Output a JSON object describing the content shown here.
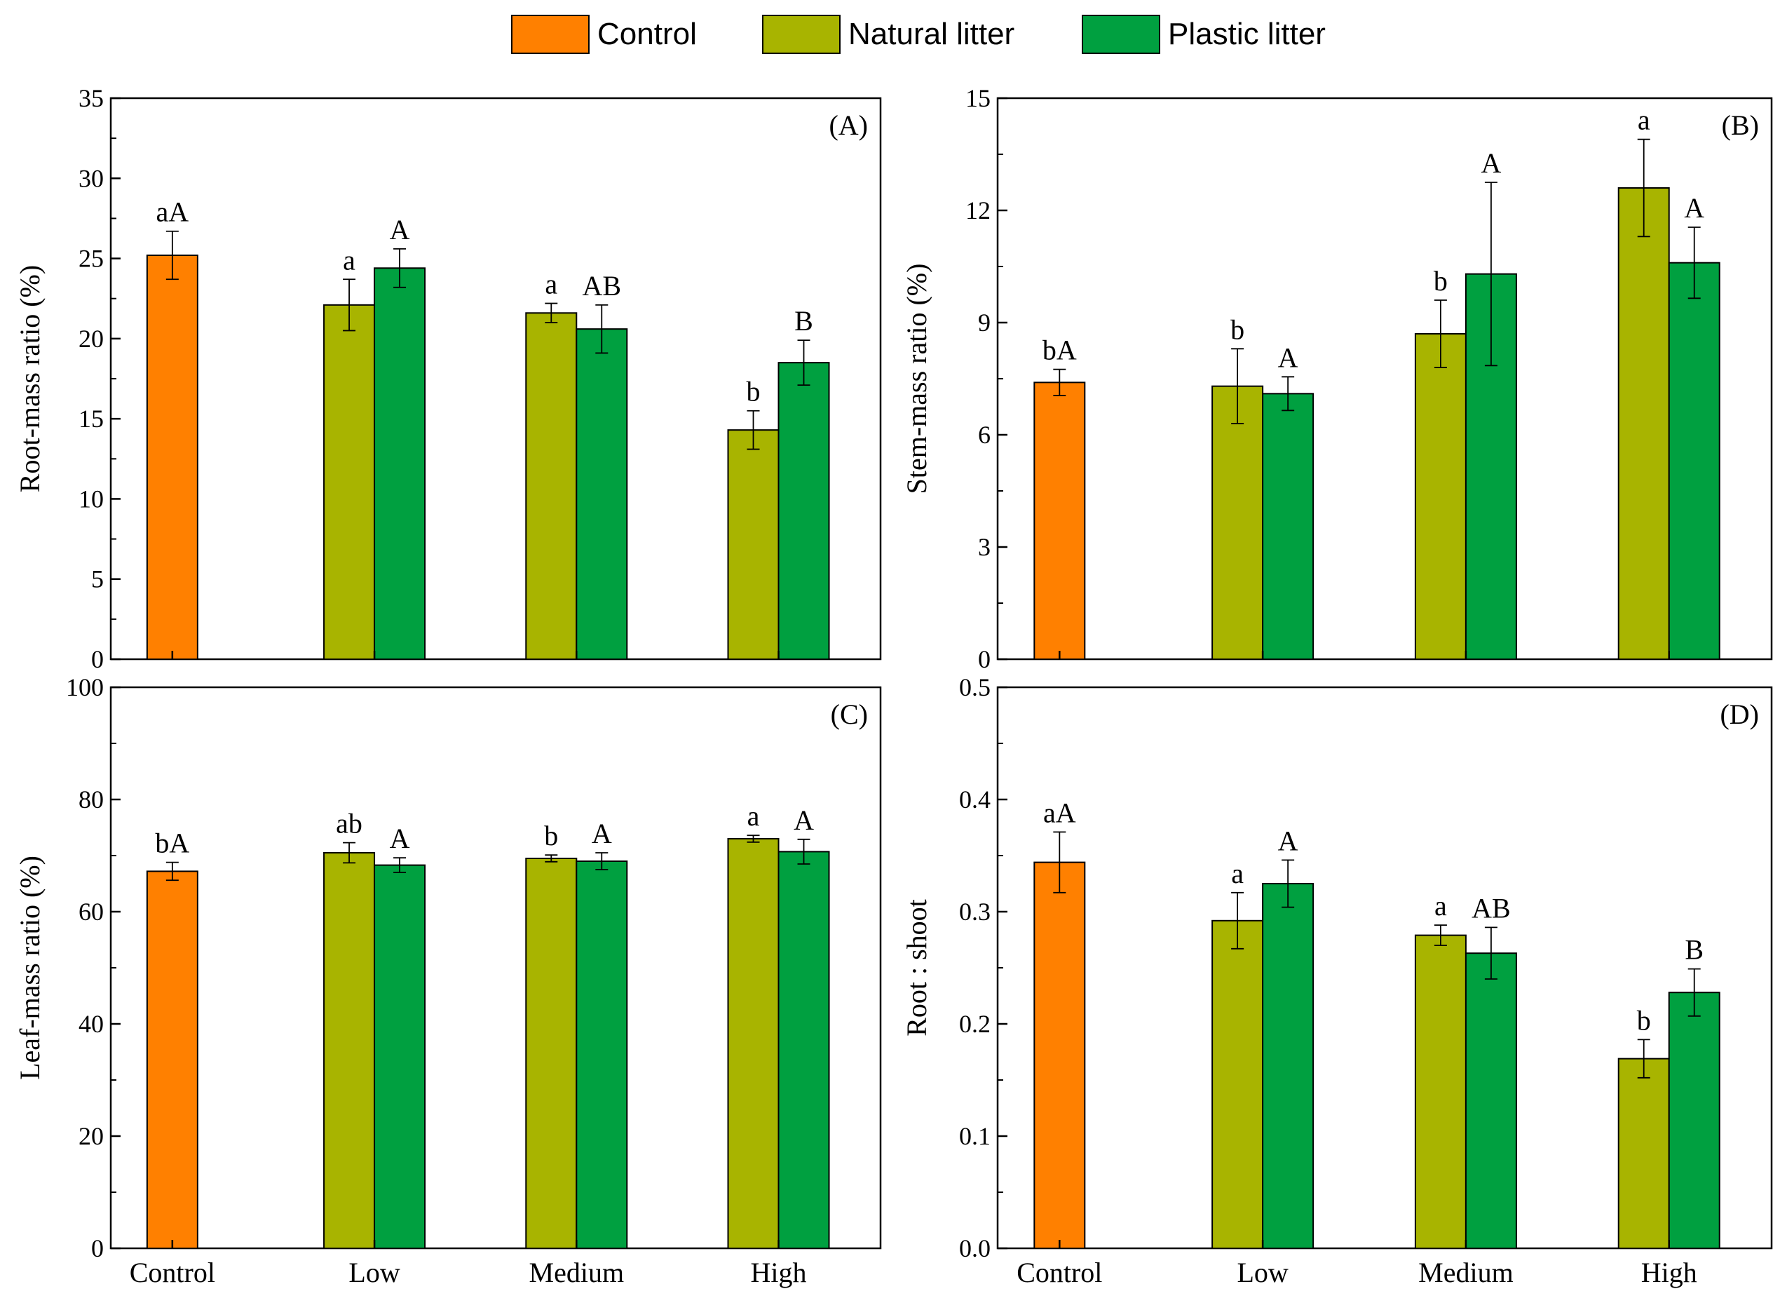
{
  "legend": [
    {
      "name": "Control",
      "color": "#FF8000"
    },
    {
      "name": "Natural litter",
      "color": "#A8B400"
    },
    {
      "name": "Plastic litter",
      "color": "#00A040"
    }
  ],
  "chart_data": [
    {
      "panel": "(A)",
      "type": "bar",
      "ylabel": "Root-mass ratio (%)",
      "ylim": [
        0,
        35
      ],
      "yticks": [
        "0",
        "5",
        "10",
        "15",
        "20",
        "25",
        "30",
        "35"
      ],
      "categories": [
        "Control",
        "Low",
        "Medium",
        "High"
      ],
      "show_categories": false,
      "series": [
        {
          "name": "Control",
          "values": [
            25.2,
            null,
            null,
            null
          ],
          "errors": [
            1.5,
            null,
            null,
            null
          ],
          "labels": [
            "aA",
            null,
            null,
            null
          ]
        },
        {
          "name": "Natural litter",
          "values": [
            null,
            22.1,
            21.6,
            14.3
          ],
          "errors": [
            null,
            1.6,
            0.6,
            1.2
          ],
          "labels": [
            null,
            "a",
            "a",
            "b"
          ]
        },
        {
          "name": "Plastic litter",
          "values": [
            null,
            24.4,
            20.6,
            18.5
          ],
          "errors": [
            null,
            1.2,
            1.5,
            1.4
          ],
          "labels": [
            null,
            "A",
            "AB",
            "B"
          ]
        }
      ]
    },
    {
      "panel": "(B)",
      "type": "bar",
      "ylabel": "Stem-mass ratio (%)",
      "ylim": [
        0,
        15
      ],
      "yticks": [
        "0",
        "3",
        "6",
        "9",
        "12",
        "15"
      ],
      "categories": [
        "Control",
        "Low",
        "Medium",
        "High"
      ],
      "show_categories": false,
      "series": [
        {
          "name": "Control",
          "values": [
            7.4,
            null,
            null,
            null
          ],
          "errors": [
            0.35,
            null,
            null,
            null
          ],
          "labels": [
            "bA",
            null,
            null,
            null
          ]
        },
        {
          "name": "Natural litter",
          "values": [
            null,
            7.3,
            8.7,
            12.6
          ],
          "errors": [
            null,
            1.0,
            0.9,
            1.3
          ],
          "labels": [
            null,
            "b",
            "b",
            "a"
          ]
        },
        {
          "name": "Plastic litter",
          "values": [
            null,
            7.1,
            10.3,
            10.6
          ],
          "errors": [
            null,
            0.45,
            2.45,
            0.95
          ],
          "labels": [
            null,
            "A",
            "A",
            "A"
          ]
        }
      ]
    },
    {
      "panel": "(C)",
      "type": "bar",
      "ylabel": "Leaf-mass ratio (%)",
      "ylim": [
        0,
        100
      ],
      "yticks": [
        "0",
        "20",
        "40",
        "60",
        "80",
        "100"
      ],
      "categories": [
        "Control",
        "Low",
        "Medium",
        "High"
      ],
      "show_categories": true,
      "series": [
        {
          "name": "Control",
          "values": [
            67.2,
            null,
            null,
            null
          ],
          "errors": [
            1.6,
            null,
            null,
            null
          ],
          "labels": [
            "bA",
            null,
            null,
            null
          ]
        },
        {
          "name": "Natural litter",
          "values": [
            null,
            70.5,
            69.5,
            73.0
          ],
          "errors": [
            null,
            1.8,
            0.6,
            0.6
          ],
          "labels": [
            null,
            "ab",
            "b",
            "a"
          ]
        },
        {
          "name": "Plastic litter",
          "values": [
            null,
            68.3,
            69.0,
            70.7
          ],
          "errors": [
            null,
            1.3,
            1.5,
            2.2
          ],
          "labels": [
            null,
            "A",
            "A",
            "A"
          ]
        }
      ]
    },
    {
      "panel": "(D)",
      "type": "bar",
      "ylabel": "Root : shoot",
      "ylim": [
        0,
        0.5
      ],
      "yticks": [
        "0.0",
        "0.1",
        "0.2",
        "0.3",
        "0.4",
        "0.5"
      ],
      "categories": [
        "Control",
        "Low",
        "Medium",
        "High"
      ],
      "show_categories": true,
      "series": [
        {
          "name": "Control",
          "values": [
            0.344,
            null,
            null,
            null
          ],
          "errors": [
            0.027,
            null,
            null,
            null
          ],
          "labels": [
            "aA",
            null,
            null,
            null
          ]
        },
        {
          "name": "Natural litter",
          "values": [
            null,
            0.292,
            0.279,
            0.169
          ],
          "errors": [
            null,
            0.025,
            0.009,
            0.017
          ],
          "labels": [
            null,
            "a",
            "a",
            "b"
          ]
        },
        {
          "name": "Plastic litter",
          "values": [
            null,
            0.325,
            0.263,
            0.228
          ],
          "errors": [
            null,
            0.021,
            0.023,
            0.021
          ],
          "labels": [
            null,
            "A",
            "AB",
            "B"
          ]
        }
      ]
    }
  ]
}
